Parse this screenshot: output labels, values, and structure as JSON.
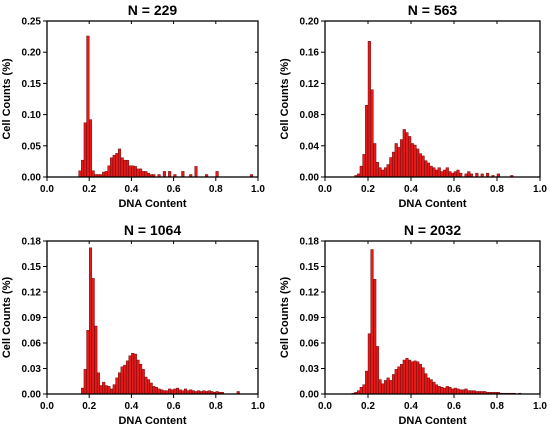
{
  "chart_data": [
    {
      "type": "bar",
      "title": "N = 229",
      "xlabel": "DNA Content",
      "ylabel": "Cell Counts (%)",
      "xlim": [
        0.0,
        1.0
      ],
      "ylim": [
        0.0,
        0.25
      ],
      "xticks": [
        "0.0",
        "0.2",
        "0.4",
        "0.6",
        "0.8",
        "1.0"
      ],
      "yticks": [
        "0.00",
        "0.05",
        "0.10",
        "0.15",
        "0.20",
        "0.25"
      ],
      "bin_width": 0.0125,
      "x": [
        0.15,
        0.1625,
        0.175,
        0.1875,
        0.2,
        0.2125,
        0.225,
        0.2375,
        0.25,
        0.2625,
        0.275,
        0.2875,
        0.3,
        0.3125,
        0.325,
        0.3375,
        0.35,
        0.3625,
        0.375,
        0.3875,
        0.4,
        0.4125,
        0.425,
        0.4375,
        0.45,
        0.4625,
        0.475,
        0.4875,
        0.5,
        0.525,
        0.55,
        0.575,
        0.6,
        0.6375,
        0.675,
        0.7,
        0.75,
        0.8,
        0.9625
      ],
      "values": [
        0.01,
        0.027,
        0.087,
        0.226,
        0.092,
        0.01,
        0.004,
        0.004,
        0.004,
        0.008,
        0.009,
        0.018,
        0.031,
        0.035,
        0.038,
        0.045,
        0.031,
        0.027,
        0.027,
        0.018,
        0.018,
        0.017,
        0.013,
        0.013,
        0.009,
        0.009,
        0.006,
        0.004,
        0.004,
        0.004,
        0.009,
        0.009,
        0.004,
        0.009,
        0.004,
        0.017,
        0.004,
        0.009,
        0.004
      ]
    },
    {
      "type": "bar",
      "title": "N = 563",
      "xlabel": "DNA Content",
      "ylabel": "Cell Counts (%)",
      "xlim": [
        0.0,
        1.0
      ],
      "ylim": [
        0.0,
        0.2
      ],
      "xticks": [
        "0.0",
        "0.2",
        "0.4",
        "0.6",
        "0.8",
        "1.0"
      ],
      "yticks": [
        "0.00",
        "0.04",
        "0.08",
        "0.12",
        "0.16",
        "0.20"
      ],
      "bin_width": 0.0125,
      "x": [
        0.1375,
        0.15,
        0.1625,
        0.175,
        0.1875,
        0.2,
        0.2125,
        0.225,
        0.2375,
        0.25,
        0.2625,
        0.275,
        0.2875,
        0.3,
        0.3125,
        0.325,
        0.3375,
        0.35,
        0.3625,
        0.375,
        0.3875,
        0.4,
        0.4125,
        0.425,
        0.4375,
        0.45,
        0.4625,
        0.475,
        0.4875,
        0.5,
        0.5125,
        0.525,
        0.5375,
        0.55,
        0.5625,
        0.575,
        0.5875,
        0.6,
        0.6125,
        0.625,
        0.65,
        0.6625,
        0.675,
        0.7,
        0.725,
        0.75,
        0.775,
        0.8,
        0.8625
      ],
      "values": [
        0.002,
        0.004,
        0.014,
        0.029,
        0.092,
        0.174,
        0.112,
        0.043,
        0.019,
        0.012,
        0.009,
        0.012,
        0.016,
        0.025,
        0.032,
        0.043,
        0.038,
        0.048,
        0.061,
        0.057,
        0.052,
        0.043,
        0.041,
        0.036,
        0.03,
        0.027,
        0.021,
        0.018,
        0.014,
        0.012,
        0.009,
        0.012,
        0.007,
        0.009,
        0.012,
        0.007,
        0.005,
        0.007,
        0.009,
        0.005,
        0.004,
        0.007,
        0.004,
        0.005,
        0.004,
        0.005,
        0.002,
        0.004,
        0.002
      ]
    },
    {
      "type": "bar",
      "title": "N = 1064",
      "xlabel": "DNA Content",
      "ylabel": "Cell Counts (%)",
      "xlim": [
        0.0,
        1.0
      ],
      "ylim": [
        0.0,
        0.18
      ],
      "xticks": [
        "0.0",
        "0.2",
        "0.4",
        "0.6",
        "0.8",
        "1.0"
      ],
      "yticks": [
        "0.00",
        "0.03",
        "0.06",
        "0.09",
        "0.12",
        "0.15",
        "0.18"
      ],
      "bin_width": 0.0125,
      "x": [
        0.1625,
        0.175,
        0.1875,
        0.2,
        0.2125,
        0.225,
        0.2375,
        0.25,
        0.2625,
        0.275,
        0.2875,
        0.3,
        0.3125,
        0.325,
        0.3375,
        0.35,
        0.3625,
        0.375,
        0.3875,
        0.4,
        0.4125,
        0.425,
        0.4375,
        0.45,
        0.4625,
        0.475,
        0.4875,
        0.5,
        0.5125,
        0.525,
        0.5375,
        0.55,
        0.5625,
        0.575,
        0.5875,
        0.6,
        0.6125,
        0.625,
        0.6375,
        0.65,
        0.6625,
        0.675,
        0.6875,
        0.7,
        0.7125,
        0.725,
        0.7375,
        0.75,
        0.7625,
        0.775,
        0.7875,
        0.8,
        0.8125,
        0.825,
        0.9
      ],
      "values": [
        0.007,
        0.029,
        0.075,
        0.172,
        0.136,
        0.08,
        0.025,
        0.01,
        0.014,
        0.01,
        0.009,
        0.006,
        0.011,
        0.019,
        0.025,
        0.032,
        0.034,
        0.039,
        0.045,
        0.048,
        0.047,
        0.04,
        0.035,
        0.029,
        0.02,
        0.017,
        0.013,
        0.009,
        0.008,
        0.006,
        0.005,
        0.004,
        0.004,
        0.006,
        0.005,
        0.006,
        0.007,
        0.005,
        0.004,
        0.006,
        0.004,
        0.005,
        0.004,
        0.003,
        0.004,
        0.003,
        0.004,
        0.003,
        0.004,
        0.003,
        0.002,
        0.003,
        0.002,
        0.002,
        0.003
      ]
    },
    {
      "type": "bar",
      "title": "N = 2032",
      "xlabel": "DNA Content",
      "ylabel": "Cell Counts (%)",
      "xlim": [
        0.0,
        1.0
      ],
      "ylim": [
        0.0,
        0.18
      ],
      "xticks": [
        "0.0",
        "0.2",
        "0.4",
        "0.6",
        "0.8",
        "1.0"
      ],
      "yticks": [
        "0.00",
        "0.03",
        "0.06",
        "0.09",
        "0.12",
        "0.15",
        "0.18"
      ],
      "bin_width": 0.0125,
      "x": [
        0.125,
        0.1375,
        0.15,
        0.1625,
        0.175,
        0.1875,
        0.2,
        0.2125,
        0.225,
        0.2375,
        0.25,
        0.2625,
        0.275,
        0.2875,
        0.3,
        0.3125,
        0.325,
        0.3375,
        0.35,
        0.3625,
        0.375,
        0.3875,
        0.4,
        0.4125,
        0.425,
        0.4375,
        0.45,
        0.4625,
        0.475,
        0.4875,
        0.5,
        0.5125,
        0.525,
        0.5375,
        0.55,
        0.5625,
        0.575,
        0.5875,
        0.6,
        0.6125,
        0.625,
        0.6375,
        0.65,
        0.6625,
        0.675,
        0.6875,
        0.7,
        0.7125,
        0.725,
        0.7375,
        0.75,
        0.7625,
        0.775,
        0.7875,
        0.8,
        0.8125,
        0.825,
        0.8375,
        0.85,
        0.8625,
        0.875,
        0.9
      ],
      "values": [
        0.001,
        0.002,
        0.004,
        0.008,
        0.011,
        0.027,
        0.071,
        0.17,
        0.135,
        0.056,
        0.017,
        0.012,
        0.016,
        0.019,
        0.016,
        0.023,
        0.029,
        0.032,
        0.035,
        0.04,
        0.042,
        0.04,
        0.038,
        0.039,
        0.038,
        0.035,
        0.031,
        0.024,
        0.019,
        0.017,
        0.014,
        0.011,
        0.009,
        0.008,
        0.007,
        0.009,
        0.008,
        0.006,
        0.007,
        0.006,
        0.005,
        0.005,
        0.006,
        0.004,
        0.004,
        0.004,
        0.003,
        0.003,
        0.003,
        0.003,
        0.002,
        0.002,
        0.002,
        0.002,
        0.002,
        0.001,
        0.001,
        0.001,
        0.001,
        0.001,
        0.001,
        0.001
      ]
    }
  ]
}
